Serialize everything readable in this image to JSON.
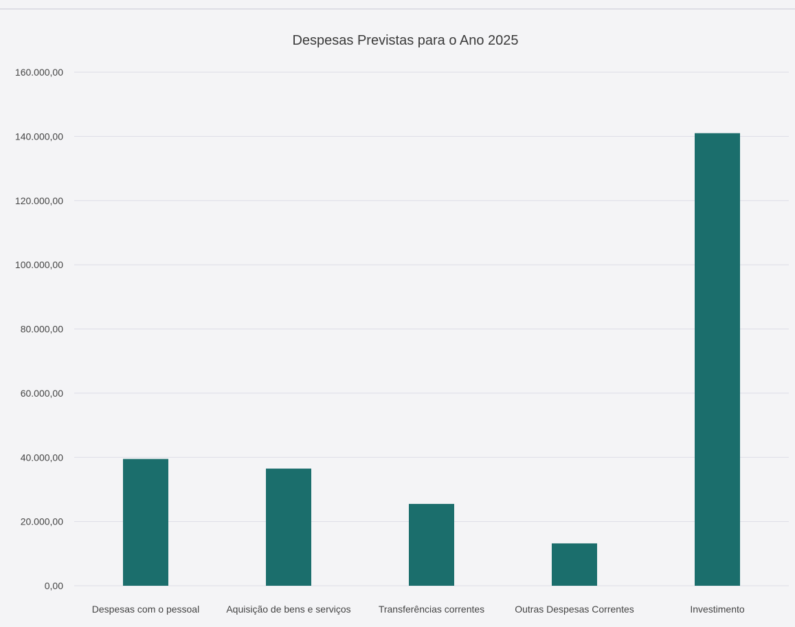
{
  "chart_data": {
    "type": "bar",
    "title": "Despesas Previstas para o Ano 2025",
    "categories": [
      "Despesas com o pessoal",
      "Aquisição de bens e serviços",
      "Transferências correntes",
      "Outras Despesas Correntes",
      "Investimento"
    ],
    "values": [
      39500,
      36500,
      25500,
      13200,
      141000
    ],
    "ylim": [
      0,
      160000
    ],
    "yticks": [
      0,
      20000,
      40000,
      60000,
      80000,
      100000,
      120000,
      140000,
      160000
    ],
    "ytick_labels": [
      "0,00",
      "20.000,00",
      "40.000,00",
      "60.000,00",
      "80.000,00",
      "100.000,00",
      "120.000,00",
      "140.000,00",
      "160.000,00"
    ],
    "xlabel": "",
    "ylabel": "",
    "grid": true,
    "legend": "none",
    "bar_color": "#1b6e6c",
    "grid_color": "#dcdce6",
    "background": "#f4f4f6"
  }
}
